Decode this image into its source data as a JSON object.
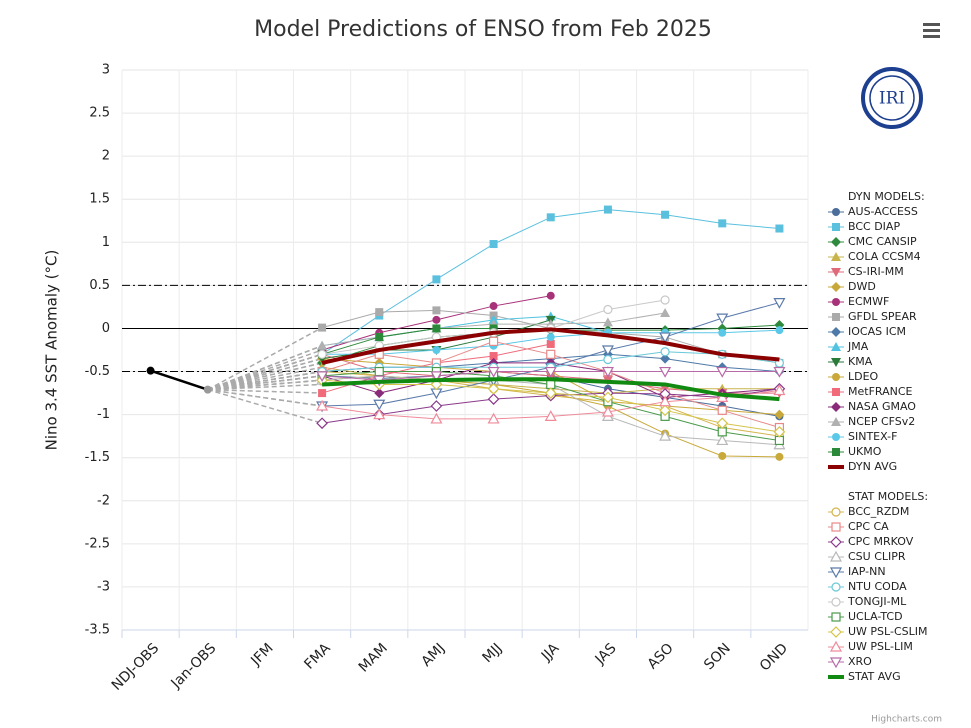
{
  "chart_data": {
    "type": "line",
    "title": "Model Predictions of ENSO from Feb 2025",
    "y_axis_label": "Nino 3.4 SST Anomaly (°C)",
    "logo_text": "IRI",
    "credit": "Highcharts.com",
    "categories": [
      "NDJ-OBS",
      "Jan-OBS",
      "JFM",
      "FMA",
      "MAM",
      "AMJ",
      "MJJ",
      "JJA",
      "JAS",
      "ASO",
      "SON",
      "OND"
    ],
    "ylim": [
      -3.5,
      3
    ],
    "yticks": [
      -3.5,
      -3,
      -2.5,
      -2,
      -1.5,
      -1,
      -0.5,
      0,
      0.5,
      1,
      1.5,
      2,
      2.5,
      3
    ],
    "grid": true,
    "reference_lines": [
      {
        "value": 0,
        "style": "solid"
      },
      {
        "value": 0.5,
        "style": "dashdot"
      },
      {
        "value": -0.5,
        "style": "dashdot"
      }
    ],
    "observed": {
      "color": "#000000",
      "values": [
        -0.49,
        -0.71,
        null,
        null,
        null,
        null,
        null,
        null,
        null,
        null,
        null,
        null
      ]
    },
    "groups": [
      {
        "label": "DYN MODELS:",
        "group": "dyn"
      },
      {
        "label": "STAT MODELS:",
        "group": "stat"
      }
    ],
    "series": [
      {
        "name": "AUS-ACCESS",
        "group": "dyn",
        "color": "#4a6d9a",
        "marker": "circle",
        "filled": true,
        "values": [
          null,
          null,
          null,
          -0.55,
          -0.58,
          -0.55,
          -0.5,
          -0.55,
          -0.7,
          -0.8,
          -0.9,
          -1.02
        ]
      },
      {
        "name": "BCC DIAP",
        "group": "dyn",
        "color": "#5bc0de",
        "marker": "square",
        "filled": true,
        "values": [
          null,
          null,
          null,
          -0.3,
          0.15,
          0.57,
          0.98,
          1.29,
          1.38,
          1.32,
          1.22,
          1.16
        ]
      },
      {
        "name": "CMC CANSIP",
        "group": "dyn",
        "color": "#2e8b3e",
        "marker": "diamond",
        "filled": true,
        "values": [
          null,
          null,
          null,
          -0.4,
          -0.2,
          -0.1,
          -0.05,
          -0.02,
          -0.02,
          -0.02,
          0,
          0.04
        ]
      },
      {
        "name": "COLA CCSM4",
        "group": "dyn",
        "color": "#c8b44a",
        "marker": "triangle",
        "filled": true,
        "values": [
          null,
          null,
          null,
          -0.45,
          -0.55,
          -0.6,
          -0.65,
          -0.7,
          -0.75,
          -0.7,
          -0.7,
          -0.7
        ]
      },
      {
        "name": "CS-IRI-MM",
        "group": "dyn",
        "color": "#e06a7a",
        "marker": "triangle-down",
        "filled": true,
        "values": [
          null,
          null,
          null,
          -0.3,
          -0.5,
          -0.55,
          -0.5,
          -0.55,
          -0.6,
          -0.7,
          -0.75,
          -0.75
        ]
      },
      {
        "name": "DWD",
        "group": "dyn",
        "color": "#c9a83a",
        "marker": "diamond",
        "filled": true,
        "values": [
          null,
          null,
          null,
          -0.35,
          -0.4,
          -0.45,
          -0.5,
          -0.5,
          -0.85,
          -0.9,
          -0.95,
          -1.0
        ]
      },
      {
        "name": "ECMWF",
        "group": "dyn",
        "color": "#a83279",
        "marker": "circle",
        "filled": true,
        "values": [
          null,
          null,
          null,
          -0.25,
          -0.05,
          0.1,
          0.26,
          0.38,
          null,
          null,
          null,
          null
        ]
      },
      {
        "name": "GFDL SPEAR",
        "group": "dyn",
        "color": "#aaaaaa",
        "marker": "square",
        "filled": true,
        "values": [
          null,
          null,
          null,
          0.01,
          0.19,
          0.21,
          0.15,
          0,
          -0.05,
          -0.1,
          -0.3,
          -0.4
        ]
      },
      {
        "name": "IOCAS ICM",
        "group": "dyn",
        "color": "#4d7aa8",
        "marker": "diamond",
        "filled": true,
        "values": [
          null,
          null,
          null,
          -0.5,
          -0.45,
          -0.45,
          -0.4,
          -0.35,
          -0.3,
          -0.35,
          -0.45,
          -0.5
        ]
      },
      {
        "name": "JMA",
        "group": "dyn",
        "color": "#4fc3e0",
        "marker": "triangle",
        "filled": true,
        "values": [
          null,
          null,
          null,
          -0.2,
          -0.1,
          0,
          0.1,
          0.14,
          -0.05,
          null,
          null,
          null
        ]
      },
      {
        "name": "KMA",
        "group": "dyn",
        "color": "#2a7a3a",
        "marker": "triangle-down",
        "filled": true,
        "values": [
          null,
          null,
          null,
          -0.35,
          -0.25,
          -0.25,
          -0.1,
          0.1,
          null,
          null,
          null,
          null
        ]
      },
      {
        "name": "LDEO",
        "group": "dyn",
        "color": "#c8a93a",
        "marker": "circle",
        "filled": true,
        "values": [
          null,
          null,
          null,
          -0.6,
          -0.55,
          -0.6,
          -0.65,
          -0.75,
          -0.9,
          -1.22,
          -1.48,
          -1.49
        ]
      },
      {
        "name": "MetFRANCE",
        "group": "dyn",
        "color": "#f06a7a",
        "marker": "square",
        "filled": true,
        "values": [
          null,
          null,
          null,
          -0.75,
          -0.55,
          -0.4,
          -0.32,
          -0.18,
          null,
          null,
          null,
          null
        ]
      },
      {
        "name": "NASA GMAO",
        "group": "dyn",
        "color": "#8a2a7a",
        "marker": "diamond",
        "filled": true,
        "values": [
          null,
          null,
          null,
          -0.55,
          -0.75,
          -0.6,
          -0.4,
          -0.4,
          -0.5,
          -0.8,
          -0.75,
          -0.7
        ]
      },
      {
        "name": "NCEP CFSv2",
        "group": "dyn",
        "color": "#b0b0b0",
        "marker": "triangle",
        "filled": true,
        "values": [
          null,
          null,
          null,
          -0.2,
          -0.1,
          0,
          0.05,
          0.05,
          0.07,
          0.18,
          null,
          null
        ]
      },
      {
        "name": "SINTEX-F",
        "group": "dyn",
        "color": "#5bc8e8",
        "marker": "circle",
        "filled": true,
        "values": [
          null,
          null,
          null,
          -0.3,
          -0.3,
          -0.25,
          -0.2,
          -0.1,
          -0.05,
          -0.05,
          -0.05,
          -0.02
        ]
      },
      {
        "name": "UKMO",
        "group": "dyn",
        "color": "#2a8a3a",
        "marker": "square",
        "filled": true,
        "values": [
          null,
          null,
          null,
          -0.3,
          -0.1,
          0,
          0,
          null,
          null,
          null,
          null,
          null
        ]
      },
      {
        "name": "DYN AVG",
        "group": "dyn",
        "color": "#8b0000",
        "marker": "none",
        "width": 4,
        "values": [
          null,
          null,
          null,
          -0.4,
          -0.25,
          -0.15,
          -0.05,
          -0.01,
          -0.08,
          -0.17,
          -0.3,
          -0.36
        ]
      },
      {
        "name": "BCC_RZDM",
        "group": "stat",
        "color": "#d4b44a",
        "marker": "circle",
        "filled": false,
        "values": [
          null,
          null,
          null,
          -0.5,
          -0.55,
          -0.6,
          -0.7,
          -0.78,
          -0.85,
          -0.9,
          -1.15,
          -1.25
        ]
      },
      {
        "name": "CPC CA",
        "group": "stat",
        "color": "#e88888",
        "marker": "square",
        "filled": false,
        "values": [
          null,
          null,
          null,
          -0.5,
          -0.3,
          -0.4,
          -0.15,
          -0.3,
          -0.5,
          -0.75,
          -0.95,
          -1.15
        ]
      },
      {
        "name": "CPC MRKOV",
        "group": "stat",
        "color": "#8a3a8a",
        "marker": "diamond",
        "filled": false,
        "values": [
          null,
          null,
          null,
          -1.1,
          -1.0,
          -0.9,
          -0.82,
          -0.78,
          -0.75,
          -0.76,
          -0.8,
          -0.7
        ]
      },
      {
        "name": "CSU CLIPR",
        "group": "stat",
        "color": "#b8b8b8",
        "marker": "triangle",
        "filled": false,
        "values": [
          null,
          null,
          null,
          -0.6,
          -0.55,
          -0.6,
          -0.6,
          -0.65,
          -1.02,
          -1.25,
          -1.3,
          -1.35
        ]
      },
      {
        "name": "IAP-NN",
        "group": "stat",
        "color": "#5a7aaa",
        "marker": "triangle-down",
        "filled": false,
        "values": [
          null,
          null,
          null,
          -0.9,
          -0.88,
          -0.75,
          -0.6,
          -0.45,
          -0.25,
          -0.1,
          0.12,
          0.3
        ]
      },
      {
        "name": "NTU CODA",
        "group": "stat",
        "color": "#6ac8d8",
        "marker": "circle",
        "filled": false,
        "values": [
          null,
          null,
          null,
          -0.5,
          -0.45,
          -0.45,
          -0.45,
          -0.45,
          -0.36,
          -0.27,
          -0.3,
          -0.4
        ]
      },
      {
        "name": "TONGJI-ML",
        "group": "stat",
        "color": "#c8c8c8",
        "marker": "circle",
        "filled": false,
        "values": [
          null,
          null,
          null,
          -0.3,
          -0.2,
          -0.1,
          -0.05,
          0,
          0.22,
          0.33,
          null,
          null
        ]
      },
      {
        "name": "UCLA-TCD",
        "group": "stat",
        "color": "#4a9a4a",
        "marker": "square",
        "filled": false,
        "values": [
          null,
          null,
          null,
          -0.55,
          -0.5,
          -0.5,
          -0.55,
          -0.65,
          -0.85,
          -1.02,
          -1.2,
          -1.3
        ]
      },
      {
        "name": "UW PSL-CSLIM",
        "group": "stat",
        "color": "#d4c44a",
        "marker": "diamond",
        "filled": false,
        "values": [
          null,
          null,
          null,
          -0.6,
          -0.65,
          -0.65,
          -0.7,
          -0.75,
          -0.8,
          -0.95,
          -1.1,
          -1.2
        ]
      },
      {
        "name": "UW PSL-LIM",
        "group": "stat",
        "color": "#f08a9a",
        "marker": "triangle",
        "filled": false,
        "values": [
          null,
          null,
          null,
          -0.9,
          -1.0,
          -1.05,
          -1.05,
          -1.02,
          -0.97,
          -0.85,
          -0.8,
          -0.72
        ]
      },
      {
        "name": "XRO",
        "group": "stat",
        "color": "#b86aa8",
        "marker": "triangle-down",
        "filled": false,
        "values": [
          null,
          null,
          null,
          -0.55,
          -0.6,
          -0.55,
          -0.5,
          -0.5,
          -0.5,
          -0.5,
          -0.5,
          -0.5
        ]
      },
      {
        "name": "STAT AVG",
        "group": "stat",
        "color": "#118a11",
        "marker": "none",
        "width": 4,
        "values": [
          null,
          null,
          null,
          -0.65,
          -0.62,
          -0.6,
          -0.59,
          -0.59,
          -0.62,
          -0.65,
          -0.77,
          -0.82
        ]
      }
    ]
  }
}
